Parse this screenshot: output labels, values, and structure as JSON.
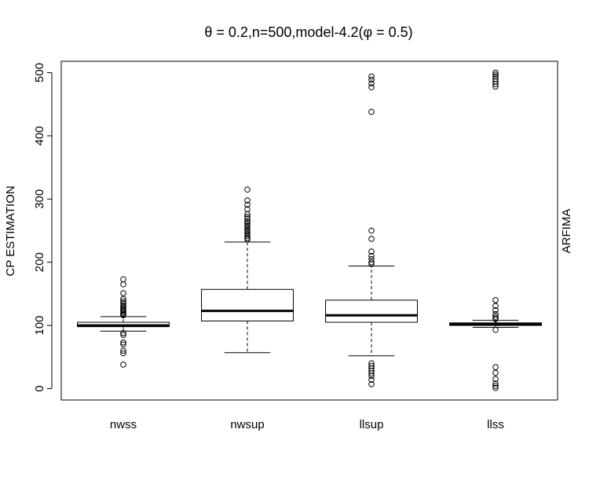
{
  "chart_data": {
    "type": "box",
    "title": "θ = 0.2,n=500,model-4.2(φ = 0.5)",
    "ylabel": "CP ESTIMATION",
    "right_label": "ARFIMA",
    "ylim": [
      -18,
      518
    ],
    "yticks": [
      0,
      100,
      200,
      300,
      400,
      500
    ],
    "categories": [
      "nwss",
      "nwsup",
      "llsup",
      "llss"
    ],
    "boxes": [
      {
        "name": "nwss",
        "whisker_low": 91,
        "q1": 98,
        "median": 100,
        "q3": 105,
        "whisker_high": 114,
        "outliers": [
          173,
          165,
          151,
          142,
          138,
          135,
          132,
          129,
          127,
          125,
          123,
          121,
          119,
          117,
          116,
          88,
          85,
          73,
          70,
          60,
          56,
          38
        ]
      },
      {
        "name": "nwsup",
        "whisker_low": 57,
        "q1": 107,
        "median": 123,
        "q3": 157,
        "whisker_high": 232,
        "outliers": [
          315,
          298,
          291,
          284,
          276,
          272,
          269,
          265,
          262,
          259,
          256,
          253,
          250,
          247,
          244,
          241,
          238,
          236
        ]
      },
      {
        "name": "llsup",
        "whisker_low": 52,
        "q1": 105,
        "median": 116,
        "q3": 140,
        "whisker_high": 194,
        "outliers": [
          494,
          489,
          483,
          477,
          438,
          250,
          237,
          217,
          210,
          205,
          200,
          197,
          40,
          36,
          32,
          28,
          24,
          20,
          14,
          7
        ]
      },
      {
        "name": "llss",
        "whisker_low": 97,
        "q1": 100,
        "median": 102,
        "q3": 104,
        "whisker_high": 108,
        "outliers": [
          500,
          497,
          494,
          490,
          486,
          482,
          478,
          140,
          131,
          124,
          118,
          114,
          111,
          110,
          93,
          34,
          25,
          15,
          8,
          4,
          1
        ]
      }
    ]
  }
}
